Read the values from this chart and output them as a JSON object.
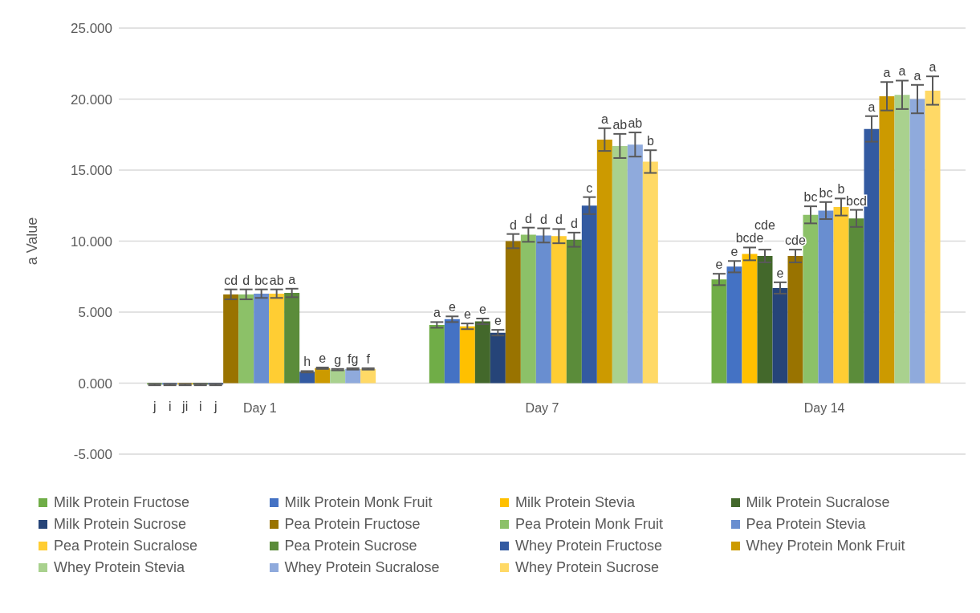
{
  "chart_data": {
    "type": "bar",
    "ylabel": "a Value",
    "categories": [
      "Day 1",
      "Day 7",
      "Day 14"
    ],
    "ylim": [
      -5,
      25
    ],
    "yticks": [
      {
        "value": -5,
        "label": "-5.000"
      },
      {
        "value": 0,
        "label": "0.000"
      },
      {
        "value": 5,
        "label": "5.000"
      },
      {
        "value": 10,
        "label": "10.000"
      },
      {
        "value": 15,
        "label": "15.000"
      },
      {
        "value": 20,
        "label": "20.000"
      },
      {
        "value": 25,
        "label": "25.000"
      }
    ],
    "grid": "y",
    "legend": "bottom",
    "series": [
      {
        "name": "Milk Protein Fructose",
        "color": "#70ad47",
        "values": [
          -0.1,
          4.1,
          7.3
        ],
        "errors": [
          0.05,
          0.2,
          0.4
        ],
        "value_labels": [
          "j",
          "a",
          "e"
        ]
      },
      {
        "name": "Milk Protein Monk Fruit",
        "color": "#4472c4",
        "values": [
          -0.1,
          4.5,
          8.2
        ],
        "errors": [
          0.05,
          0.2,
          0.4
        ],
        "value_labels": [
          "i",
          "e",
          "e"
        ]
      },
      {
        "name": "Milk Protein Stevia",
        "color": "#ffc000",
        "values": [
          -0.1,
          4.0,
          9.1
        ],
        "errors": [
          0.05,
          0.2,
          0.45
        ],
        "value_labels": [
          "ji",
          "e",
          "bcde"
        ]
      },
      {
        "name": "Milk Protein Sucralose",
        "color": "#43682b",
        "values": [
          -0.1,
          4.35,
          8.95
        ],
        "errors": [
          0.05,
          0.2,
          0.45
        ],
        "value_labels": [
          "i",
          "e",
          "cde"
        ]
      },
      {
        "name": "Milk Protein Sucrose",
        "color": "#264478",
        "values": [
          -0.1,
          3.55,
          6.7
        ],
        "errors": [
          0.05,
          0.2,
          0.4
        ],
        "value_labels": [
          "j",
          "e",
          "e"
        ]
      },
      {
        "name": "Pea Protein Fructose",
        "color": "#997300",
        "values": [
          6.25,
          10.0,
          8.95
        ],
        "errors": [
          0.35,
          0.5,
          0.45
        ],
        "value_labels": [
          "cd",
          "d",
          "cde"
        ]
      },
      {
        "name": "Pea Protein Monk Fruit",
        "color": "#8cc168",
        "values": [
          6.25,
          10.45,
          11.85
        ],
        "errors": [
          0.35,
          0.5,
          0.6
        ],
        "value_labels": [
          "d",
          "d",
          "bc"
        ]
      },
      {
        "name": "Pea Protein Stevia",
        "color": "#698ed0",
        "values": [
          6.3,
          10.4,
          12.15
        ],
        "errors": [
          0.3,
          0.5,
          0.6
        ],
        "value_labels": [
          "bc",
          "d",
          "bc"
        ]
      },
      {
        "name": "Pea Protein Sucralose",
        "color": "#ffcd33",
        "values": [
          6.3,
          10.35,
          12.4
        ],
        "errors": [
          0.3,
          0.5,
          0.6
        ],
        "value_labels": [
          "ab",
          "d",
          "b"
        ]
      },
      {
        "name": "Pea Protein Sucrose",
        "color": "#5b8c3a",
        "values": [
          6.35,
          10.1,
          11.6
        ],
        "errors": [
          0.3,
          0.5,
          0.6
        ],
        "value_labels": [
          "a",
          "d",
          "bcd"
        ]
      },
      {
        "name": "Whey Protein Fructose",
        "color": "#335aa1",
        "values": [
          0.8,
          12.5,
          17.9
        ],
        "errors": [
          0.05,
          0.6,
          0.9
        ],
        "value_labels": [
          "h",
          "c",
          "a"
        ]
      },
      {
        "name": "Whey Protein Monk Fruit",
        "color": "#cc9a00",
        "values": [
          1.05,
          17.15,
          20.2
        ],
        "errors": [
          0.05,
          0.8,
          1.0
        ],
        "value_labels": [
          "e",
          "a",
          "a"
        ]
      },
      {
        "name": "Whey Protein Stevia",
        "color": "#a9d18e",
        "values": [
          0.95,
          16.7,
          20.3
        ],
        "errors": [
          0.05,
          0.85,
          1.0
        ],
        "value_labels": [
          "g",
          "ab",
          "a"
        ]
      },
      {
        "name": "Whey Protein Sucralose",
        "color": "#8faadc",
        "values": [
          1.0,
          16.8,
          20.0
        ],
        "errors": [
          0.05,
          0.85,
          1.0
        ],
        "value_labels": [
          "fg",
          "ab",
          "a"
        ]
      },
      {
        "name": "Whey Protein Sucrose",
        "color": "#ffd966",
        "values": [
          1.0,
          15.6,
          20.6
        ],
        "errors": [
          0.05,
          0.8,
          1.0
        ],
        "value_labels": [
          "f",
          "b",
          "a"
        ]
      }
    ]
  }
}
